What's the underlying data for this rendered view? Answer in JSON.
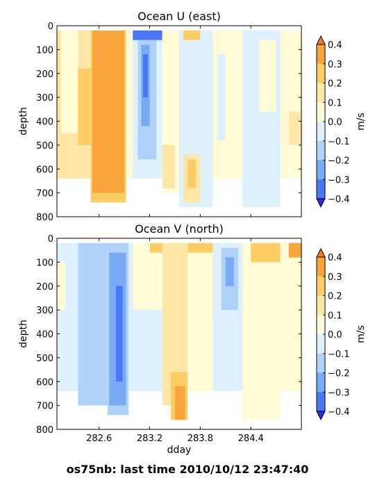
{
  "figure": {
    "caption": "os75nb: last time 2010/10/12 23:47:40"
  },
  "colorbar": {
    "levels": [
      -0.4,
      -0.3,
      -0.2,
      -0.1,
      0.0,
      0.1,
      0.2,
      0.3,
      0.4
    ],
    "colors": [
      "#2a2aee",
      "#4a78f4",
      "#7aaaf6",
      "#aed2fa",
      "#def0fc",
      "#fffbd6",
      "#fde6a6",
      "#fbcd64",
      "#f9a53c",
      "#f57a24"
    ],
    "extend": "both",
    "tick_labels": [
      "0.4",
      "0.3",
      "0.2",
      "0.1",
      "0.0",
      "−0.1",
      "−0.2",
      "−0.3",
      "−0.4"
    ],
    "unit_label": "m/s"
  },
  "chart_data": [
    {
      "type": "heatmap",
      "title": "Ocean U (east)",
      "xlabel": "",
      "ylabel": "depth",
      "x_range": [
        282.1,
        285.0
      ],
      "y_range": [
        800,
        0
      ],
      "y_ticks": [
        "0",
        "100",
        "200",
        "300",
        "400",
        "500",
        "600",
        "700",
        "800"
      ],
      "x_ticks": [
        282.6,
        283.2,
        283.8,
        284.4
      ],
      "x_tick_labels_shown": false,
      "cells": [
        {
          "x0": 282.1,
          "x1": 282.5,
          "y0": 20,
          "y1": 640,
          "v": 0.1
        },
        {
          "x0": 282.15,
          "x1": 282.35,
          "y0": 20,
          "y1": 450,
          "v": 0.0
        },
        {
          "x0": 282.35,
          "x1": 282.5,
          "y0": 180,
          "y1": 500,
          "v": 0.2
        },
        {
          "x0": 282.5,
          "x1": 282.92,
          "y0": 20,
          "y1": 740,
          "v": 0.2
        },
        {
          "x0": 282.52,
          "x1": 282.9,
          "y0": 20,
          "y1": 700,
          "v": 0.3
        },
        {
          "x0": 282.58,
          "x1": 282.62,
          "y0": 60,
          "y1": 650,
          "v": 0.35
        },
        {
          "x0": 282.92,
          "x1": 283.0,
          "y0": 20,
          "y1": 640,
          "v": 0.0
        },
        {
          "x0": 283.0,
          "x1": 283.35,
          "y0": 20,
          "y1": 640,
          "v": -0.1
        },
        {
          "x0": 283.0,
          "x1": 283.35,
          "y0": 20,
          "y1": 60,
          "v": -0.35
        },
        {
          "x0": 283.06,
          "x1": 283.28,
          "y0": 60,
          "y1": 560,
          "v": -0.2
        },
        {
          "x0": 283.1,
          "x1": 283.2,
          "y0": 80,
          "y1": 420,
          "v": -0.3
        },
        {
          "x0": 283.12,
          "x1": 283.18,
          "y0": 120,
          "y1": 300,
          "v": -0.4
        },
        {
          "x0": 283.35,
          "x1": 283.55,
          "y0": 20,
          "y1": 700,
          "v": 0.0
        },
        {
          "x0": 283.35,
          "x1": 283.5,
          "y0": 500,
          "y1": 680,
          "v": 0.1
        },
        {
          "x0": 283.55,
          "x1": 283.95,
          "y0": 20,
          "y1": 760,
          "v": -0.1
        },
        {
          "x0": 283.6,
          "x1": 283.8,
          "y0": 20,
          "y1": 60,
          "v": 0.2
        },
        {
          "x0": 283.6,
          "x1": 283.8,
          "y0": 540,
          "y1": 740,
          "v": 0.1
        },
        {
          "x0": 283.65,
          "x1": 283.75,
          "y0": 560,
          "y1": 680,
          "v": 0.2
        },
        {
          "x0": 283.95,
          "x1": 284.3,
          "y0": 20,
          "y1": 640,
          "v": 0.0
        },
        {
          "x0": 284.0,
          "x1": 284.1,
          "y0": 120,
          "y1": 480,
          "v": -0.1
        },
        {
          "x0": 284.3,
          "x1": 284.75,
          "y0": 20,
          "y1": 760,
          "v": -0.1
        },
        {
          "x0": 284.5,
          "x1": 284.7,
          "y0": 60,
          "y1": 360,
          "v": 0.0
        },
        {
          "x0": 284.75,
          "x1": 285.0,
          "y0": 20,
          "y1": 640,
          "v": 0.0
        },
        {
          "x0": 284.85,
          "x1": 285.0,
          "y0": 360,
          "y1": 500,
          "v": 0.1
        }
      ]
    },
    {
      "type": "heatmap",
      "title": "Ocean V (north)",
      "xlabel": "dday",
      "ylabel": "depth",
      "x_range": [
        282.1,
        285.0
      ],
      "y_range": [
        800,
        0
      ],
      "y_ticks": [
        "0",
        "100",
        "200",
        "300",
        "400",
        "500",
        "600",
        "700",
        "800"
      ],
      "x_ticks": [
        282.6,
        283.2,
        283.8,
        284.4
      ],
      "x_tick_labels": [
        "282.6",
        "283.2",
        "283.8",
        "284.4"
      ],
      "cells": [
        {
          "x0": 282.1,
          "x1": 282.35,
          "y0": 20,
          "y1": 640,
          "v": -0.1
        },
        {
          "x0": 282.1,
          "x1": 282.2,
          "y0": 100,
          "y1": 300,
          "v": 0.0
        },
        {
          "x0": 282.35,
          "x1": 282.7,
          "y0": 20,
          "y1": 700,
          "v": -0.2
        },
        {
          "x0": 282.7,
          "x1": 282.95,
          "y0": 20,
          "y1": 740,
          "v": -0.2
        },
        {
          "x0": 282.72,
          "x1": 282.92,
          "y0": 60,
          "y1": 700,
          "v": -0.3
        },
        {
          "x0": 282.8,
          "x1": 282.88,
          "y0": 200,
          "y1": 600,
          "v": -0.4
        },
        {
          "x0": 282.95,
          "x1": 283.35,
          "y0": 20,
          "y1": 640,
          "v": -0.1
        },
        {
          "x0": 283.0,
          "x1": 283.35,
          "y0": 20,
          "y1": 300,
          "v": 0.0
        },
        {
          "x0": 283.2,
          "x1": 283.35,
          "y0": 20,
          "y1": 60,
          "v": 0.2
        },
        {
          "x0": 283.35,
          "x1": 283.65,
          "y0": 20,
          "y1": 700,
          "v": 0.1
        },
        {
          "x0": 283.45,
          "x1": 283.65,
          "y0": 560,
          "y1": 760,
          "v": 0.2
        },
        {
          "x0": 283.5,
          "x1": 283.62,
          "y0": 620,
          "y1": 760,
          "v": 0.3
        },
        {
          "x0": 283.65,
          "x1": 283.95,
          "y0": 20,
          "y1": 640,
          "v": 0.0
        },
        {
          "x0": 283.65,
          "x1": 283.95,
          "y0": 20,
          "y1": 60,
          "v": 0.2
        },
        {
          "x0": 283.95,
          "x1": 284.3,
          "y0": 20,
          "y1": 640,
          "v": -0.1
        },
        {
          "x0": 284.05,
          "x1": 284.25,
          "y0": 40,
          "y1": 300,
          "v": -0.2
        },
        {
          "x0": 284.1,
          "x1": 284.2,
          "y0": 80,
          "y1": 200,
          "v": -0.3
        },
        {
          "x0": 284.3,
          "x1": 284.75,
          "y0": 20,
          "y1": 760,
          "v": 0.0
        },
        {
          "x0": 284.4,
          "x1": 284.75,
          "y0": 20,
          "y1": 100,
          "v": 0.2
        },
        {
          "x0": 284.75,
          "x1": 285.0,
          "y0": 20,
          "y1": 640,
          "v": 0.0
        },
        {
          "x0": 284.85,
          "x1": 285.0,
          "y0": 20,
          "y1": 80,
          "v": 0.3
        }
      ]
    }
  ]
}
